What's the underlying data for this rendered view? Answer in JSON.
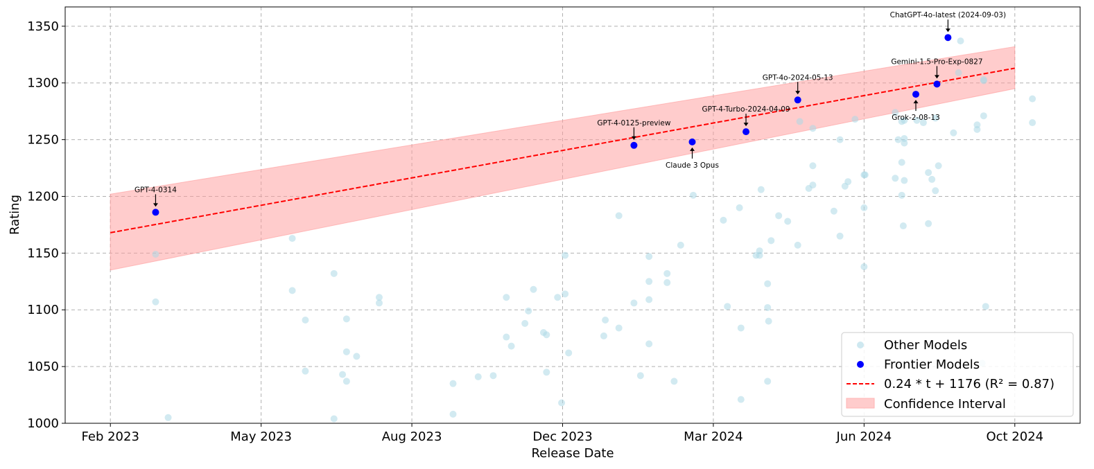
{
  "chart_data": {
    "type": "scatter",
    "xlabel": "Release Date",
    "ylabel": "Rating",
    "x_ticks": [
      {
        "label": "Feb 2023",
        "value": 0
      },
      {
        "label": "May 2023",
        "value": 3
      },
      {
        "label": "Aug 2023",
        "value": 6
      },
      {
        "label": "Dec 2023",
        "value": 9
      },
      {
        "label": "Mar 2024",
        "value": 12
      },
      {
        "label": "Jun 2024",
        "value": 15
      },
      {
        "label": "Oct 2024",
        "value": 18
      }
    ],
    "y_ticks": [
      1000,
      1050,
      1100,
      1150,
      1200,
      1250,
      1300,
      1350
    ],
    "xlim": [
      -0.9,
      19.3
    ],
    "ylim": [
      1000,
      1367
    ],
    "grid": true,
    "legend_position": "bottom-right",
    "legend": [
      {
        "label": "Other Models",
        "kind": "marker",
        "color": "#add8e6"
      },
      {
        "label": "Frontier Models",
        "kind": "marker",
        "color": "#0000ff"
      },
      {
        "label": "0.24 * t + 1176 (R² = 0.87)",
        "kind": "dashed-line",
        "color": "#ff0000"
      },
      {
        "label": "Confidence Interval",
        "kind": "patch",
        "color": "#ffcccc"
      }
    ],
    "trend": {
      "x_start": 0,
      "y_start": 1168,
      "x_end": 18,
      "y_end": 1313
    },
    "confidence_band": {
      "x": [
        0,
        18
      ],
      "lower": [
        1135,
        1295
      ],
      "upper": [
        1202,
        1332
      ]
    },
    "series": [
      {
        "name": "Frontier Models",
        "color": "#0000ff",
        "points": [
          {
            "x": 0.9,
            "y": 1186,
            "label": "GPT-4-0314",
            "label_pos": "above"
          },
          {
            "x": 10.42,
            "y": 1245,
            "label": "GPT-4-0125-preview",
            "label_pos": "above"
          },
          {
            "x": 11.58,
            "y": 1248,
            "label": "Claude 3 Opus",
            "label_pos": "below"
          },
          {
            "x": 12.65,
            "y": 1257,
            "label": "GPT-4-Turbo-2024-04-09",
            "label_pos": "above"
          },
          {
            "x": 13.68,
            "y": 1285,
            "label": "GPT-4o-2024-05-13",
            "label_pos": "above"
          },
          {
            "x": 16.03,
            "y": 1290,
            "label": "Grok-2-08-13",
            "label_pos": "below"
          },
          {
            "x": 16.45,
            "y": 1299,
            "label": "Gemini-1.5-Pro-Exp-0827",
            "label_pos": "above"
          },
          {
            "x": 16.67,
            "y": 1340,
            "label": "ChatGPT-4o-latest (2024-09-03)",
            "label_pos": "above"
          }
        ]
      },
      {
        "name": "Other Models",
        "color": "#add8e6",
        "points": [
          {
            "x": 0.9,
            "y": 1149
          },
          {
            "x": 0.9,
            "y": 1107
          },
          {
            "x": 1.15,
            "y": 1005
          },
          {
            "x": 3.62,
            "y": 1163
          },
          {
            "x": 3.62,
            "y": 1117
          },
          {
            "x": 3.88,
            "y": 1091
          },
          {
            "x": 3.88,
            "y": 1046
          },
          {
            "x": 4.45,
            "y": 1132
          },
          {
            "x": 4.45,
            "y": 1004
          },
          {
            "x": 4.62,
            "y": 1043
          },
          {
            "x": 4.7,
            "y": 1092
          },
          {
            "x": 4.7,
            "y": 1063
          },
          {
            "x": 4.7,
            "y": 1037
          },
          {
            "x": 4.9,
            "y": 1059
          },
          {
            "x": 5.35,
            "y": 1111
          },
          {
            "x": 5.35,
            "y": 1106
          },
          {
            "x": 6.82,
            "y": 1035
          },
          {
            "x": 6.82,
            "y": 1008
          },
          {
            "x": 7.32,
            "y": 1041
          },
          {
            "x": 7.62,
            "y": 1042
          },
          {
            "x": 7.88,
            "y": 1111
          },
          {
            "x": 7.88,
            "y": 1076
          },
          {
            "x": 7.98,
            "y": 1068
          },
          {
            "x": 8.25,
            "y": 1088
          },
          {
            "x": 8.32,
            "y": 1099
          },
          {
            "x": 8.42,
            "y": 1118
          },
          {
            "x": 8.62,
            "y": 1080
          },
          {
            "x": 8.68,
            "y": 1078
          },
          {
            "x": 8.68,
            "y": 1045
          },
          {
            "x": 8.9,
            "y": 1111
          },
          {
            "x": 8.98,
            "y": 1018
          },
          {
            "x": 9.05,
            "y": 1148
          },
          {
            "x": 9.05,
            "y": 1114
          },
          {
            "x": 9.12,
            "y": 1062
          },
          {
            "x": 9.82,
            "y": 1077
          },
          {
            "x": 9.85,
            "y": 1091
          },
          {
            "x": 10.12,
            "y": 1084
          },
          {
            "x": 10.12,
            "y": 1183
          },
          {
            "x": 10.42,
            "y": 1106
          },
          {
            "x": 10.55,
            "y": 1042
          },
          {
            "x": 10.72,
            "y": 1147
          },
          {
            "x": 10.72,
            "y": 1125
          },
          {
            "x": 10.72,
            "y": 1109
          },
          {
            "x": 10.72,
            "y": 1070
          },
          {
            "x": 11.08,
            "y": 1132
          },
          {
            "x": 11.08,
            "y": 1124
          },
          {
            "x": 11.22,
            "y": 1037
          },
          {
            "x": 11.35,
            "y": 1157
          },
          {
            "x": 11.6,
            "y": 1201
          },
          {
            "x": 12.2,
            "y": 1179
          },
          {
            "x": 12.28,
            "y": 1103
          },
          {
            "x": 12.52,
            "y": 1190
          },
          {
            "x": 12.55,
            "y": 1084
          },
          {
            "x": 12.55,
            "y": 1021
          },
          {
            "x": 12.85,
            "y": 1148
          },
          {
            "x": 12.92,
            "y": 1152
          },
          {
            "x": 12.92,
            "y": 1148
          },
          {
            "x": 12.95,
            "y": 1206
          },
          {
            "x": 13.08,
            "y": 1123
          },
          {
            "x": 13.08,
            "y": 1102
          },
          {
            "x": 13.1,
            "y": 1090
          },
          {
            "x": 13.08,
            "y": 1037
          },
          {
            "x": 13.15,
            "y": 1161
          },
          {
            "x": 13.3,
            "y": 1183
          },
          {
            "x": 13.48,
            "y": 1178
          },
          {
            "x": 13.68,
            "y": 1157
          },
          {
            "x": 13.72,
            "y": 1266
          },
          {
            "x": 13.9,
            "y": 1207
          },
          {
            "x": 13.98,
            "y": 1260
          },
          {
            "x": 13.98,
            "y": 1227
          },
          {
            "x": 13.98,
            "y": 1210
          },
          {
            "x": 14.4,
            "y": 1187
          },
          {
            "x": 14.52,
            "y": 1250
          },
          {
            "x": 14.52,
            "y": 1165
          },
          {
            "x": 14.62,
            "y": 1209
          },
          {
            "x": 14.68,
            "y": 1213
          },
          {
            "x": 14.82,
            "y": 1268
          },
          {
            "x": 15.0,
            "y": 1219
          },
          {
            "x": 15.0,
            "y": 1190
          },
          {
            "x": 15.0,
            "y": 1138
          },
          {
            "x": 15.02,
            "y": 1219
          },
          {
            "x": 15.62,
            "y": 1274
          },
          {
            "x": 15.62,
            "y": 1216
          },
          {
            "x": 15.68,
            "y": 1250
          },
          {
            "x": 15.75,
            "y": 1266
          },
          {
            "x": 15.75,
            "y": 1230
          },
          {
            "x": 15.75,
            "y": 1201
          },
          {
            "x": 15.78,
            "y": 1174
          },
          {
            "x": 15.8,
            "y": 1267
          },
          {
            "x": 15.8,
            "y": 1251
          },
          {
            "x": 15.8,
            "y": 1247
          },
          {
            "x": 15.8,
            "y": 1214
          },
          {
            "x": 16.18,
            "y": 1265
          },
          {
            "x": 16.05,
            "y": 1267
          },
          {
            "x": 16.28,
            "y": 1221
          },
          {
            "x": 16.28,
            "y": 1176
          },
          {
            "x": 16.35,
            "y": 1215
          },
          {
            "x": 16.42,
            "y": 1205
          },
          {
            "x": 16.42,
            "y": 1269
          },
          {
            "x": 16.48,
            "y": 1227
          },
          {
            "x": 16.78,
            "y": 1256
          },
          {
            "x": 16.88,
            "y": 1309
          },
          {
            "x": 16.92,
            "y": 1337
          },
          {
            "x": 17.25,
            "y": 1263
          },
          {
            "x": 17.25,
            "y": 1259
          },
          {
            "x": 17.38,
            "y": 1271
          },
          {
            "x": 17.38,
            "y": 1302
          },
          {
            "x": 17.38,
            "y": 1303
          },
          {
            "x": 17.42,
            "y": 1103
          },
          {
            "x": 17.35,
            "y": 1053
          },
          {
            "x": 18.35,
            "y": 1286
          },
          {
            "x": 18.35,
            "y": 1265
          }
        ]
      }
    ]
  }
}
